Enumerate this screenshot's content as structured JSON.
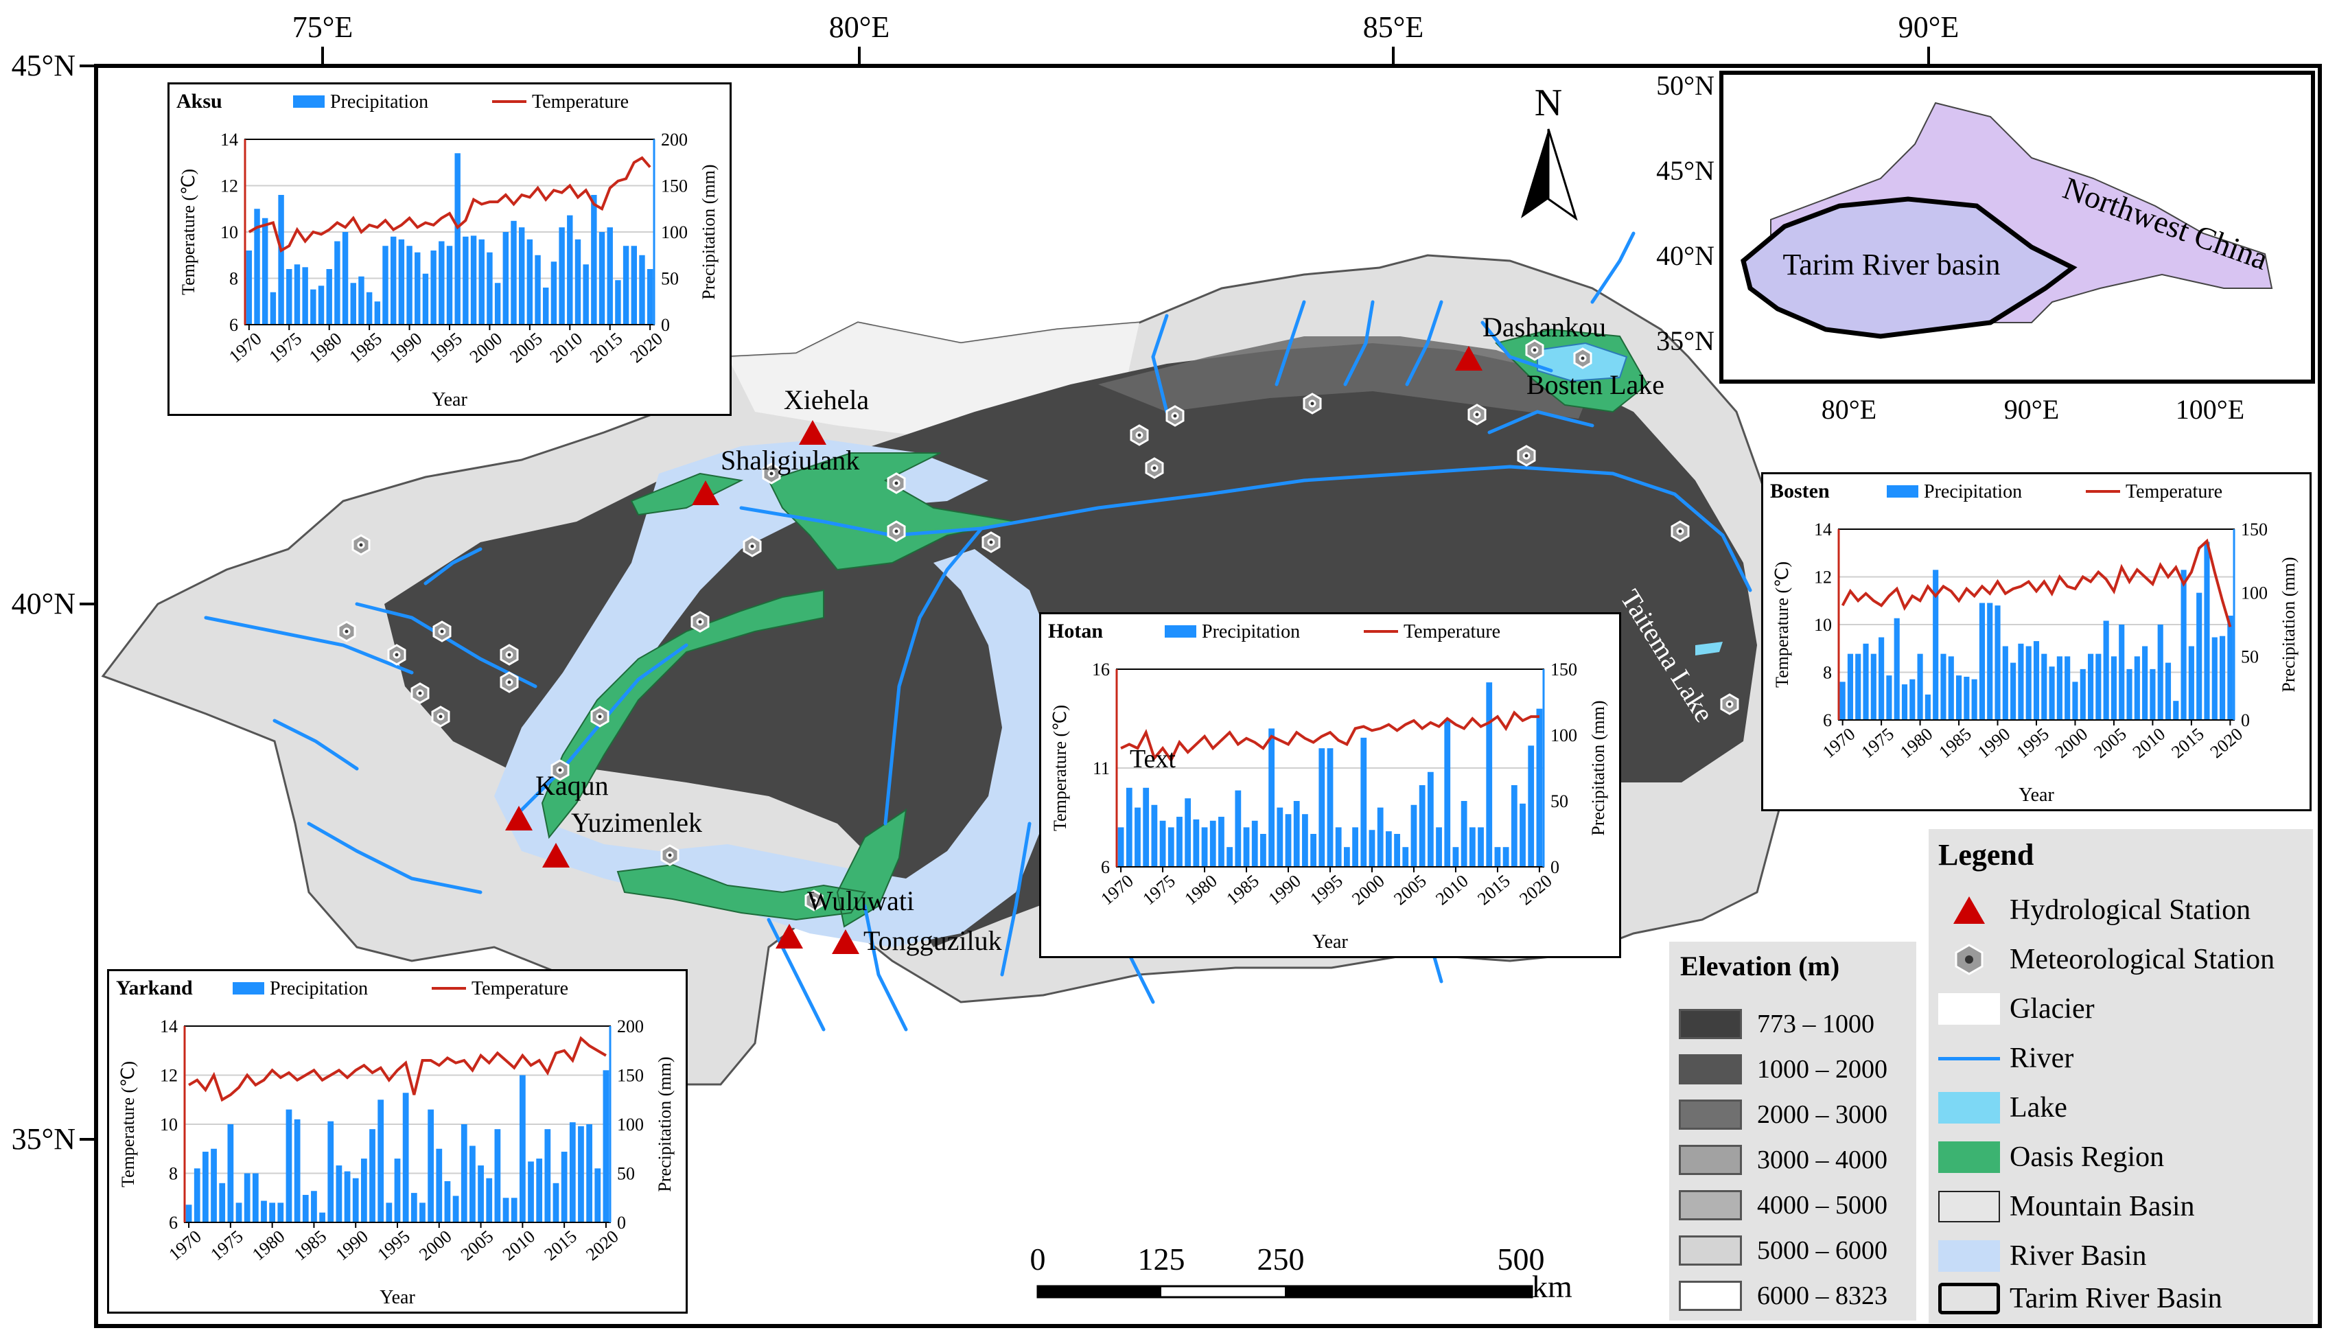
{
  "grid": {
    "lon_labels": [
      "75°E",
      "80°E",
      "85°E",
      "90°E"
    ],
    "lat_labels": [
      "45°N",
      "40°N",
      "35°N"
    ]
  },
  "north_arrow": {
    "label": "N"
  },
  "scale_bar": {
    "ticks": [
      "0",
      "125",
      "250",
      "500"
    ],
    "unit": "km"
  },
  "map_labels": {
    "xiehela": "Xiehela",
    "shaligiulank": "Shaligiulank",
    "dashankou": "Dashankou",
    "bosten_lake": "Bosten Lake",
    "kaqun": "Kaqun",
    "yuzimenlek": "Yuzimenlek",
    "wuluwati": "Wuluwati",
    "tongguziluk": "Tongguziluk",
    "taitema_lake": "Taitema Lake",
    "text_placeholder": "Text"
  },
  "overview": {
    "lat_labels": [
      "50°N",
      "45°N",
      "40°N",
      "35°N"
    ],
    "lon_labels": [
      "80°E",
      "90°E",
      "100°E"
    ],
    "region_label": "Northwest China",
    "basin_label": "Tarim River basin",
    "colors": {
      "region": "#d8c4f2",
      "basin": "#c7c4f0"
    }
  },
  "legend": {
    "title": "Legend",
    "items": [
      {
        "label": "Hydrological Station",
        "icon": "red-triangle"
      },
      {
        "label": "Meteorological Station",
        "icon": "gray-hexagon-dot"
      },
      {
        "label": "Glacier",
        "icon": "white-box"
      },
      {
        "label": "River",
        "icon": "blue-line"
      },
      {
        "label": "Lake",
        "icon": "cyan-box"
      },
      {
        "label": "Oasis Region",
        "icon": "green-box"
      },
      {
        "label": "Mountain Basin",
        "icon": "light-gray-box"
      },
      {
        "label": "River Basin",
        "icon": "light-blue-box"
      },
      {
        "label": "Tarim River Basin",
        "icon": "bold-outline-box"
      }
    ],
    "colors": {
      "hydro": "#cc0000",
      "met": "#9a9a9a",
      "glacier": "#ffffff",
      "river": "#1e90ff",
      "lake": "#7dd8f5",
      "oasis": "#3cb371",
      "mountain": "#e0e0e0",
      "river_basin": "#c6dcf8"
    }
  },
  "elevation_legend": {
    "title": "Elevation (m)",
    "classes": [
      {
        "label": "773 – 1000",
        "color": "#3f3f3f"
      },
      {
        "label": "1000 – 2000",
        "color": "#555555"
      },
      {
        "label": "2000 – 3000",
        "color": "#707070"
      },
      {
        "label": "3000 – 4000",
        "color": "#a2a2a2"
      },
      {
        "label": "4000 – 5000",
        "color": "#b2b2b2"
      },
      {
        "label": "5000 – 6000",
        "color": "#d4d4d4"
      },
      {
        "label": "6000 – 8323",
        "color": "#ffffff"
      }
    ]
  },
  "chart_data": [
    {
      "type": "bar",
      "station": "Aksu",
      "legend": [
        "Precipitation",
        "Temperature"
      ],
      "xlabel": "Year",
      "ylabel_left": "Temperature (℃)",
      "ylabel_right": "Precipitation (mm)",
      "xticks": [
        "1970",
        "1975",
        "1980",
        "1985",
        "1990",
        "1995",
        "2000",
        "2005",
        "2010",
        "2015",
        "2020"
      ],
      "t_ticks": [
        "6",
        "8",
        "10",
        "12",
        "14"
      ],
      "t_range": [
        6,
        14
      ],
      "p_ticks": [
        "0",
        "50",
        "100",
        "150",
        "200"
      ],
      "p_range": [
        0,
        200
      ],
      "years": [
        1970,
        1971,
        1972,
        1973,
        1974,
        1975,
        1976,
        1977,
        1978,
        1979,
        1980,
        1981,
        1982,
        1983,
        1984,
        1985,
        1986,
        1987,
        1988,
        1989,
        1990,
        1991,
        1992,
        1993,
        1994,
        1995,
        1996,
        1997,
        1998,
        1999,
        2000,
        2001,
        2002,
        2003,
        2004,
        2005,
        2006,
        2007,
        2008,
        2009,
        2010,
        2011,
        2012,
        2013,
        2014,
        2015,
        2016,
        2017,
        2018,
        2019,
        2020
      ],
      "precipitation": [
        80,
        125,
        115,
        35,
        140,
        60,
        65,
        62,
        38,
        42,
        60,
        90,
        100,
        45,
        52,
        35,
        25,
        85,
        95,
        92,
        85,
        78,
        55,
        80,
        90,
        85,
        185,
        95,
        96,
        92,
        78,
        45,
        100,
        112,
        105,
        92,
        75,
        40,
        68,
        105,
        118,
        92,
        65,
        140,
        100,
        105,
        48,
        85,
        85,
        75,
        60
      ],
      "temperature": [
        10.0,
        10.2,
        10.3,
        10.4,
        9.2,
        9.4,
        10.1,
        9.6,
        10.0,
        9.9,
        10.1,
        10.4,
        10.2,
        10.6,
        10.0,
        10.3,
        10.2,
        10.5,
        10.1,
        10.3,
        10.6,
        10.2,
        10.4,
        10.3,
        10.6,
        10.8,
        10.2,
        10.5,
        11.4,
        11.2,
        11.3,
        11.3,
        11.6,
        11.2,
        11.6,
        11.5,
        11.9,
        11.4,
        11.8,
        11.7,
        12.0,
        11.5,
        11.8,
        11.2,
        11.0,
        11.9,
        12.2,
        12.3,
        13.0,
        13.2,
        12.8
      ],
      "colors": {
        "precipitation": "#1e90ff",
        "temperature": "#c8281a"
      }
    },
    {
      "type": "bar",
      "station": "Bosten",
      "legend": [
        "Precipitation",
        "Temperature"
      ],
      "xlabel": "Year",
      "ylabel_left": "Temperature (℃)",
      "ylabel_right": "Precipitation (mm)",
      "xticks": [
        "1970",
        "1975",
        "1980",
        "1985",
        "1990",
        "1995",
        "2000",
        "2005",
        "2010",
        "2015",
        "2020"
      ],
      "t_ticks": [
        "6",
        "8",
        "10",
        "12",
        "14"
      ],
      "t_range": [
        6,
        14
      ],
      "p_ticks": [
        "0",
        "50",
        "100",
        "150"
      ],
      "p_range": [
        0,
        150
      ],
      "years": [
        1970,
        1971,
        1972,
        1973,
        1974,
        1975,
        1976,
        1977,
        1978,
        1979,
        1980,
        1981,
        1982,
        1983,
        1984,
        1985,
        1986,
        1987,
        1988,
        1989,
        1990,
        1991,
        1992,
        1993,
        1994,
        1995,
        1996,
        1997,
        1998,
        1999,
        2000,
        2001,
        2002,
        2003,
        2004,
        2005,
        2006,
        2007,
        2008,
        2009,
        2010,
        2011,
        2012,
        2013,
        2014,
        2015,
        2016,
        2017,
        2018,
        2019,
        2020
      ],
      "precipitation": [
        30,
        52,
        52,
        60,
        52,
        65,
        35,
        80,
        28,
        32,
        52,
        20,
        118,
        52,
        50,
        35,
        34,
        32,
        92,
        92,
        90,
        58,
        45,
        60,
        58,
        62,
        52,
        42,
        50,
        50,
        30,
        40,
        52,
        52,
        78,
        50,
        75,
        40,
        50,
        58,
        40,
        75,
        45,
        15,
        118,
        58,
        100,
        140,
        65,
        66,
        82
      ],
      "temperature": [
        10.8,
        11.4,
        11.0,
        11.3,
        11.0,
        10.8,
        11.2,
        11.5,
        10.7,
        11.2,
        11.0,
        11.6,
        11.2,
        11.6,
        11.4,
        11.0,
        11.5,
        11.2,
        11.6,
        11.3,
        11.8,
        11.3,
        11.5,
        11.6,
        11.8,
        11.4,
        11.8,
        11.3,
        12.0,
        11.6,
        11.5,
        12.0,
        11.8,
        12.2,
        11.9,
        11.4,
        12.4,
        11.8,
        12.3,
        12.0,
        11.7,
        12.5,
        12.0,
        12.4,
        11.7,
        12.2,
        13.2,
        13.5,
        12.2,
        11.0,
        9.9
      ],
      "colors": {
        "precipitation": "#1e90ff",
        "temperature": "#c8281a"
      }
    },
    {
      "type": "bar",
      "station": "Hotan",
      "legend": [
        "Precipitation",
        "Temperature"
      ],
      "xlabel": "Year",
      "ylabel_left": "Temperature (℃)",
      "ylabel_right": "Precipitation (mm)",
      "xticks": [
        "1970",
        "1975",
        "1980",
        "1985",
        "1990",
        "1995",
        "2000",
        "2005",
        "2010",
        "2015",
        "2020"
      ],
      "t_ticks": [
        "6",
        "11",
        "16"
      ],
      "t_range": [
        6,
        16
      ],
      "p_ticks": [
        "0",
        "50",
        "100",
        "150"
      ],
      "p_range": [
        0,
        150
      ],
      "years": [
        1970,
        1971,
        1972,
        1973,
        1974,
        1975,
        1976,
        1977,
        1978,
        1979,
        1980,
        1981,
        1982,
        1983,
        1984,
        1985,
        1986,
        1987,
        1988,
        1989,
        1990,
        1991,
        1992,
        1993,
        1994,
        1995,
        1996,
        1997,
        1998,
        1999,
        2000,
        2001,
        2002,
        2003,
        2004,
        2005,
        2006,
        2007,
        2008,
        2009,
        2010,
        2011,
        2012,
        2013,
        2014,
        2015,
        2016,
        2017,
        2018,
        2019,
        2020
      ],
      "precipitation": [
        30,
        60,
        45,
        60,
        47,
        35,
        30,
        38,
        52,
        36,
        30,
        35,
        38,
        15,
        58,
        30,
        35,
        25,
        105,
        45,
        40,
        50,
        40,
        25,
        90,
        90,
        30,
        15,
        30,
        98,
        28,
        45,
        27,
        25,
        15,
        47,
        62,
        72,
        30,
        112,
        15,
        50,
        30,
        30,
        140,
        15,
        15,
        62,
        48,
        92,
        120
      ],
      "temperature": [
        12.0,
        12.2,
        12.0,
        12.8,
        11.5,
        12.0,
        11.4,
        12.3,
        11.8,
        12.2,
        12.6,
        12.0,
        12.4,
        12.8,
        12.2,
        12.5,
        12.3,
        12.0,
        12.6,
        12.4,
        12.2,
        12.8,
        12.5,
        12.3,
        12.6,
        12.8,
        12.4,
        12.2,
        13.0,
        13.1,
        12.9,
        13.0,
        13.2,
        12.9,
        13.2,
        13.4,
        13.0,
        13.3,
        13.1,
        13.5,
        13.2,
        13.0,
        13.5,
        13.1,
        13.3,
        13.6,
        13.0,
        13.8,
        13.4,
        13.6,
        13.6
      ],
      "colors": {
        "precipitation": "#1e90ff",
        "temperature": "#c8281a"
      }
    },
    {
      "type": "bar",
      "station": "Yarkand",
      "legend": [
        "Precipitation",
        "Temperature"
      ],
      "xlabel": "Year",
      "ylabel_left": "Temperature (℃)",
      "ylabel_right": "Precipitation (mm)",
      "xticks": [
        "1970",
        "1975",
        "1980",
        "1985",
        "1990",
        "1995",
        "2000",
        "2005",
        "2010",
        "2015",
        "2020"
      ],
      "t_ticks": [
        "6",
        "8",
        "10",
        "12",
        "14"
      ],
      "t_range": [
        6,
        14
      ],
      "p_ticks": [
        "0",
        "50",
        "100",
        "150",
        "200"
      ],
      "p_range": [
        0,
        200
      ],
      "years": [
        1970,
        1971,
        1972,
        1973,
        1974,
        1975,
        1976,
        1977,
        1978,
        1979,
        1980,
        1981,
        1982,
        1983,
        1984,
        1985,
        1986,
        1987,
        1988,
        1989,
        1990,
        1991,
        1992,
        1993,
        1994,
        1995,
        1996,
        1997,
        1998,
        1999,
        2000,
        2001,
        2002,
        2003,
        2004,
        2005,
        2006,
        2007,
        2008,
        2009,
        2010,
        2011,
        2012,
        2013,
        2014,
        2015,
        2016,
        2017,
        2018,
        2019,
        2020
      ],
      "precipitation": [
        18,
        55,
        72,
        75,
        40,
        100,
        20,
        50,
        50,
        22,
        20,
        20,
        115,
        105,
        28,
        32,
        10,
        103,
        58,
        52,
        45,
        65,
        95,
        125,
        20,
        65,
        132,
        30,
        20,
        115,
        75,
        42,
        27,
        100,
        78,
        58,
        45,
        95,
        25,
        25,
        150,
        62,
        65,
        95,
        40,
        72,
        102,
        98,
        100,
        55,
        155
      ],
      "temperature": [
        11.6,
        11.8,
        11.4,
        12.0,
        11.0,
        11.2,
        11.5,
        12.0,
        11.6,
        11.8,
        12.2,
        11.9,
        12.1,
        11.8,
        12.0,
        12.2,
        11.8,
        12.0,
        12.2,
        11.9,
        12.2,
        12.4,
        12.1,
        12.3,
        11.8,
        12.2,
        12.5,
        11.2,
        12.6,
        12.6,
        12.4,
        12.7,
        12.5,
        12.6,
        12.2,
        12.8,
        12.5,
        12.9,
        12.6,
        12.3,
        12.8,
        12.4,
        12.6,
        12.1,
        12.9,
        13.0,
        12.6,
        13.5,
        13.2,
        13.0,
        12.8
      ],
      "colors": {
        "precipitation": "#1e90ff",
        "temperature": "#c8281a"
      }
    }
  ]
}
